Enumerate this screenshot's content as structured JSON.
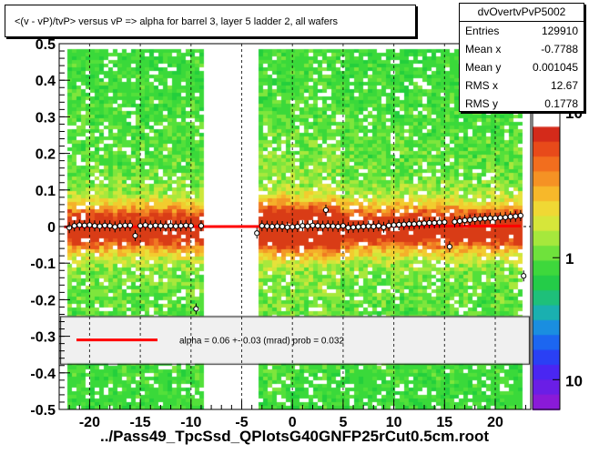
{
  "title": "<(v - vP)/tvP> versus   vP => alpha for barrel 3, layer 5 ladder 2, all wafers",
  "stats": {
    "name": "dvOvertvPvP5002",
    "rows": [
      {
        "key": "Entries",
        "value": "129910"
      },
      {
        "key": "Mean x",
        "value": "-0.7788"
      },
      {
        "key": "Mean y",
        "value": "0.001045"
      },
      {
        "key": "RMS x",
        "value": "12.67"
      },
      {
        "key": "RMS y",
        "value": "0.1778"
      }
    ]
  },
  "footer": "../Pass49_TpcSsd_QPlotsG40GNFP25rCut0.5cm.root",
  "chart_data": {
    "type": "heatmap",
    "xlim": [
      -23,
      23.5
    ],
    "ylim": [
      -0.5,
      0.5
    ],
    "x_ticks": [
      "-20",
      "-15",
      "-10",
      "-5",
      "0",
      "5",
      "10",
      "15",
      "20"
    ],
    "x_tick_values": [
      -20,
      -15,
      -10,
      -5,
      0,
      5,
      10,
      15,
      20
    ],
    "y_ticks": [
      "0.5",
      "0.4",
      "0.3",
      "0.2",
      "0.1",
      "0",
      "-0.1",
      "-0.2",
      "-0.3",
      "-0.4",
      "-0.5"
    ],
    "y_tick_values": [
      0.5,
      0.4,
      0.3,
      0.2,
      0.1,
      0,
      -0.1,
      -0.2,
      -0.3,
      -0.4,
      -0.5
    ],
    "z_scale": "log",
    "z_ticks": [
      "10",
      "1",
      "10"
    ],
    "z_tick_fracs": [
      0.0,
      0.49,
      0.9
    ],
    "occupied_x_bands": [
      [
        -22.5,
        -9.0
      ],
      [
        -3.5,
        4.5
      ],
      [
        4.5,
        22.5
      ]
    ],
    "empty_x_bands": [
      [
        -9.0,
        -3.5
      ]
    ],
    "profile_points": [
      [
        -22.0,
        -0.003
      ],
      [
        -21.5,
        0.002
      ],
      [
        -21.0,
        0.004
      ],
      [
        -20.5,
        0.003
      ],
      [
        -20.0,
        0.004
      ],
      [
        -19.5,
        0.002
      ],
      [
        -19.0,
        0.001
      ],
      [
        -18.5,
        0.003
      ],
      [
        -18.0,
        0.002
      ],
      [
        -17.5,
        -0.001
      ],
      [
        -17.0,
        0.002
      ],
      [
        -16.5,
        0.003
      ],
      [
        -16.0,
        0.003
      ],
      [
        -15.5,
        -0.025
      ],
      [
        -15.0,
        0.002
      ],
      [
        -14.5,
        0.004
      ],
      [
        -14.0,
        0.001
      ],
      [
        -13.5,
        0.003
      ],
      [
        -13.0,
        0.002
      ],
      [
        -12.5,
        0.001
      ],
      [
        -12.0,
        0.002
      ],
      [
        -11.5,
        0.001
      ],
      [
        -11.0,
        0.002
      ],
      [
        -10.5,
        0.003
      ],
      [
        -10.0,
        0.002
      ],
      [
        -9.5,
        -0.225
      ],
      [
        -9.0,
        0.002
      ],
      [
        -3.5,
        -0.018
      ],
      [
        -3.0,
        0.002
      ],
      [
        -2.5,
        0.001
      ],
      [
        -2.0,
        0.0
      ],
      [
        -1.5,
        0.001
      ],
      [
        -1.0,
        0.0
      ],
      [
        -0.5,
        -0.002
      ],
      [
        0.0,
        -0.001
      ],
      [
        0.5,
        0.0
      ],
      [
        1.0,
        0.002
      ],
      [
        1.5,
        0.001
      ],
      [
        2.0,
        0.003
      ],
      [
        2.5,
        0.002
      ],
      [
        3.0,
        0.001
      ],
      [
        3.3,
        0.045
      ],
      [
        3.5,
        0.002
      ],
      [
        4.0,
        0.001
      ],
      [
        4.5,
        0.0
      ],
      [
        5.0,
        0.002
      ],
      [
        5.5,
        -0.003
      ],
      [
        6.0,
        -0.002
      ],
      [
        6.5,
        -0.001
      ],
      [
        7.0,
        0.0
      ],
      [
        7.5,
        0.001
      ],
      [
        8.0,
        0.0
      ],
      [
        8.5,
        0.002
      ],
      [
        9.0,
        -0.002
      ],
      [
        9.5,
        0.003
      ],
      [
        10.0,
        0.004
      ],
      [
        10.5,
        0.005
      ],
      [
        11.0,
        0.006
      ],
      [
        11.5,
        0.007
      ],
      [
        12.0,
        0.007
      ],
      [
        12.5,
        0.008
      ],
      [
        13.0,
        0.009
      ],
      [
        13.5,
        0.01
      ],
      [
        14.0,
        0.01
      ],
      [
        14.5,
        0.011
      ],
      [
        15.0,
        0.012
      ],
      [
        15.5,
        -0.055
      ],
      [
        16.0,
        0.013
      ],
      [
        16.5,
        0.015
      ],
      [
        17.0,
        0.017
      ],
      [
        17.5,
        0.018
      ],
      [
        18.0,
        0.02
      ],
      [
        18.5,
        0.021
      ],
      [
        19.0,
        0.022
      ],
      [
        19.5,
        0.023
      ],
      [
        20.0,
        0.023
      ],
      [
        20.5,
        0.024
      ],
      [
        21.0,
        0.025
      ],
      [
        21.5,
        0.027
      ],
      [
        22.0,
        0.028
      ],
      [
        22.5,
        0.03
      ],
      [
        22.8,
        -0.135
      ]
    ],
    "fit": {
      "label": "alpha =    0.06 +-  0.03 (mrad) prob = 0.032",
      "slope": 6e-05,
      "intercept": 0.0003
    },
    "fit_legend_box_y": [
      -0.245,
      -0.375
    ],
    "colors": {
      "fit": "#ff0000",
      "dashed_lines": "#000000"
    }
  }
}
